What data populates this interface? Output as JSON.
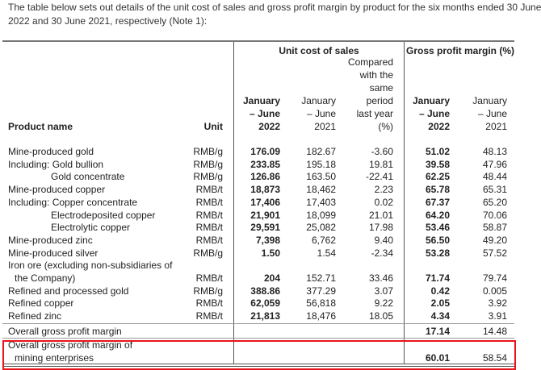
{
  "intro": {
    "line1": "The table below sets out details of the unit cost of sales and gross profit margin by product for the six months ended 30 June",
    "line2": "2022 and 30 June 2021, respectively (Note 1):"
  },
  "header": {
    "group_unit_cost": "Unit cost of sales",
    "group_gpm": "Gross profit margin (%)",
    "product_name": "Product name",
    "unit": "Unit",
    "col1": [
      "January",
      "– June",
      "2022"
    ],
    "col2": [
      "January",
      "– June",
      "2021"
    ],
    "col3": [
      "Compared",
      "with the",
      "same",
      "period",
      "last year",
      "(%)"
    ],
    "col4": [
      "January",
      "– June",
      "2022"
    ],
    "col5": [
      "January",
      "– June",
      "2021"
    ]
  },
  "rows": [
    {
      "name": "Mine-produced gold",
      "unit": "RMB/g",
      "v": [
        "176.09",
        "182.67",
        "-3.60",
        "51.02",
        "48.13"
      ]
    },
    {
      "name": "Including: Gold bullion",
      "unit": "RMB/g",
      "v": [
        "233.85",
        "195.18",
        "19.81",
        "39.58",
        "47.96"
      ]
    },
    {
      "name": "Gold concentrate",
      "indent": true,
      "unit": "RMB/g",
      "v": [
        "126.86",
        "163.50",
        "-22.41",
        "62.25",
        "48.44"
      ]
    },
    {
      "name": "Mine-produced copper",
      "unit": "RMB/t",
      "v": [
        "18,873",
        "18,462",
        "2.23",
        "65.78",
        "65.31"
      ]
    },
    {
      "name": "Including: Copper concentrate",
      "unit": "RMB/t",
      "v": [
        "17,406",
        "17,403",
        "0.02",
        "67.37",
        "65.20"
      ]
    },
    {
      "name": "Electrodeposited copper",
      "indent": true,
      "unit": "RMB/t",
      "v": [
        "21,901",
        "18,099",
        "21.01",
        "64.20",
        "70.06"
      ]
    },
    {
      "name": "Electrolytic copper",
      "indent": true,
      "unit": "RMB/t",
      "v": [
        "29,591",
        "25,082",
        "17.98",
        "53.46",
        "58.87"
      ]
    },
    {
      "name": "Mine-produced zinc",
      "unit": "RMB/t",
      "v": [
        "7,398",
        "6,762",
        "9.40",
        "56.50",
        "49.20"
      ]
    },
    {
      "name": "Mine-produced silver",
      "unit": "RMB/g",
      "v": [
        "1.50",
        "1.54",
        "-2.34",
        "53.28",
        "57.52"
      ]
    },
    {
      "name": "Iron ore (excluding non-subsidiaries of",
      "name2": "the Company)",
      "unit": "RMB/t",
      "v": [
        "204",
        "152.71",
        "33.46",
        "71.74",
        "79.74"
      ]
    },
    {
      "name": "Refined and processed gold",
      "unit": "RMB/g",
      "v": [
        "388.86",
        "377.29",
        "3.07",
        "0.42",
        "0.005"
      ]
    },
    {
      "name": "Refined copper",
      "unit": "RMB/t",
      "v": [
        "62,059",
        "56,818",
        "9.22",
        "2.05",
        "3.92"
      ]
    },
    {
      "name": "Refined zinc",
      "unit": "RMB/t",
      "v": [
        "21,813",
        "18,476",
        "18.05",
        "4.34",
        "3.91"
      ]
    }
  ],
  "overall": {
    "name": "Overall gross profit margin",
    "v": [
      "17.14",
      "14.48"
    ]
  },
  "mining": {
    "name": "Overall gross profit margin of",
    "name2": "mining enterprises",
    "v": [
      "60.01",
      "58.54"
    ]
  }
}
